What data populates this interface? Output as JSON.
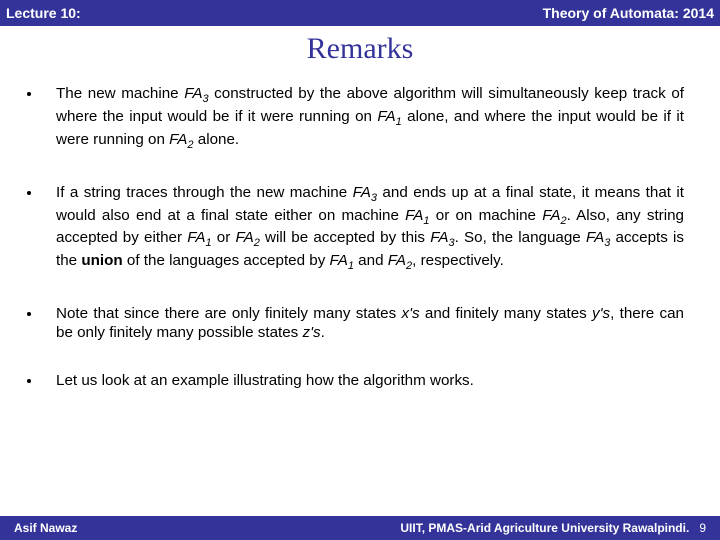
{
  "header": {
    "lecture": "Lecture 10:",
    "course": "Theory of Automata: 2014"
  },
  "title": "Remarks",
  "bullets": {
    "b1": {
      "pre1": "The new machine ",
      "fa3": "FA",
      "sub3": "3",
      "post1": " constructed by the above algorithm will simultaneously keep track of where the input would be if it were running on ",
      "fa1": "FA",
      "sub1": "1",
      "post2": " alone, and where the input would be if it were running on ",
      "fa2": "FA",
      "sub2": "2",
      "post3": " alone."
    },
    "b2": {
      "t1": "If a string traces through the new machine ",
      "fa3a": "FA",
      "s3a": "3",
      "t2": " and ends up at a final state, it means that it would also end at a final state either on machine ",
      "fa1a": "FA",
      "s1a": "1",
      "t3": " or on machine ",
      "fa2a": "FA",
      "s2a": "2",
      "t4": ". Also, any string accepted by either ",
      "fa1b": "FA",
      "s1b": "1",
      "t5": " or ",
      "fa2b": "FA",
      "s2b": "2",
      "t6": " will be accepted by this ",
      "fa3b": "FA",
      "s3b": "3",
      "t7": ". So, the language ",
      "fa3c": "FA",
      "s3c": "3",
      "t8": " accepts is the ",
      "union": "union",
      "t9": " of the languages accepted by ",
      "fa1c": "FA",
      "s1c": "1",
      "t10": " and ",
      "fa2c": "FA",
      "s2c": "2",
      "t11": ", respectively."
    },
    "b3": {
      "t1": "Note that since there are only finitely many states ",
      "xs": "x's",
      "t2": " and finitely many states ",
      "ys": "y's",
      "t3": ", there can be only finitely many possible states ",
      "zs": "z's",
      "t4": "."
    },
    "b4": {
      "t1": "Let us look at an example illustrating how the algorithm works."
    }
  },
  "footer": {
    "author": "Asif Nawaz",
    "institution": "UIIT, PMAS-Arid Agriculture University Rawalpindi.",
    "page": "9"
  },
  "colors": {
    "bar": "#333399",
    "text": "#000000",
    "bg": "#ffffff"
  }
}
